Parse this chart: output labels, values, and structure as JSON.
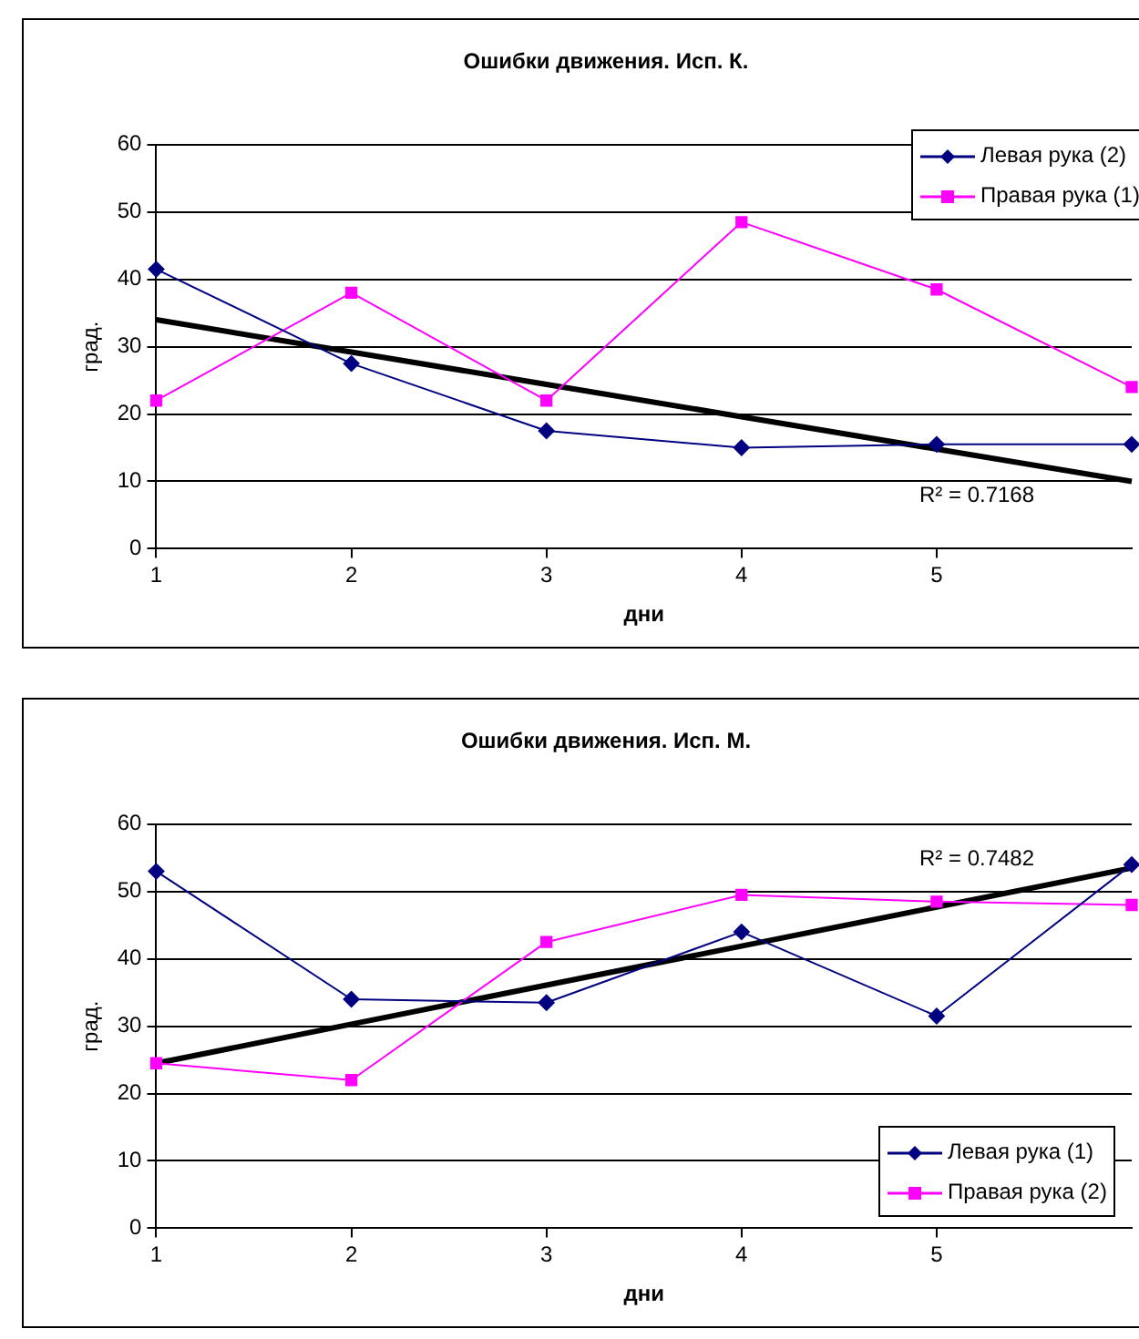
{
  "chart_data": [
    {
      "type": "line",
      "title": "Ошибки движения. Исп. К.",
      "xlabel": "дни",
      "ylabel": "град.",
      "x": [
        1,
        2,
        3,
        4,
        5,
        6
      ],
      "xlim": [
        1,
        6
      ],
      "xticks": [
        1,
        2,
        3,
        4,
        5
      ],
      "ylim": [
        0,
        60
      ],
      "yticks": [
        0,
        10,
        20,
        30,
        40,
        50,
        60
      ],
      "grid": "y",
      "legend": "top right",
      "series": [
        {
          "name": "Левая рука (2)",
          "color": "#000080",
          "marker": "diamond",
          "values": [
            41.5,
            27.5,
            17.5,
            15,
            15.5,
            15.5
          ]
        },
        {
          "name": "Правая рука (1)",
          "color": "#ff00ff",
          "marker": "square",
          "values": [
            22,
            38,
            22,
            48.5,
            38.5,
            24
          ]
        },
        {
          "type": "line",
          "color": "#000000",
          "marker": "none",
          "values": [
            34,
            29.2,
            24.4,
            19.6,
            14.8,
            10
          ]
        }
      ],
      "annotations": [
        "R² = 0.7168"
      ]
    },
    {
      "type": "line",
      "title": "Ошибки движения. Исп. М.",
      "xlabel": "дни",
      "ylabel": "град.",
      "x": [
        1,
        2,
        3,
        4,
        5,
        6
      ],
      "xlim": [
        1,
        6
      ],
      "xticks": [
        1,
        2,
        3,
        4,
        5
      ],
      "ylim": [
        0,
        60
      ],
      "yticks": [
        0,
        10,
        20,
        30,
        40,
        50,
        60
      ],
      "grid": "y",
      "legend": "bottom right",
      "series": [
        {
          "name": "Левая рука (1)",
          "color": "#000080",
          "marker": "diamond",
          "values": [
            53,
            34,
            33.5,
            44,
            31.5,
            54
          ]
        },
        {
          "name": "Правая рука (2)",
          "color": "#ff00ff",
          "marker": "square",
          "values": [
            24.5,
            22,
            42.5,
            49.5,
            48.5,
            48
          ]
        },
        {
          "type": "line",
          "color": "#000000",
          "marker": "none",
          "values": [
            24.5,
            30.3,
            36.1,
            41.9,
            47.7,
            53.5
          ]
        }
      ],
      "annotations": [
        "R² = 0.7482"
      ]
    }
  ]
}
